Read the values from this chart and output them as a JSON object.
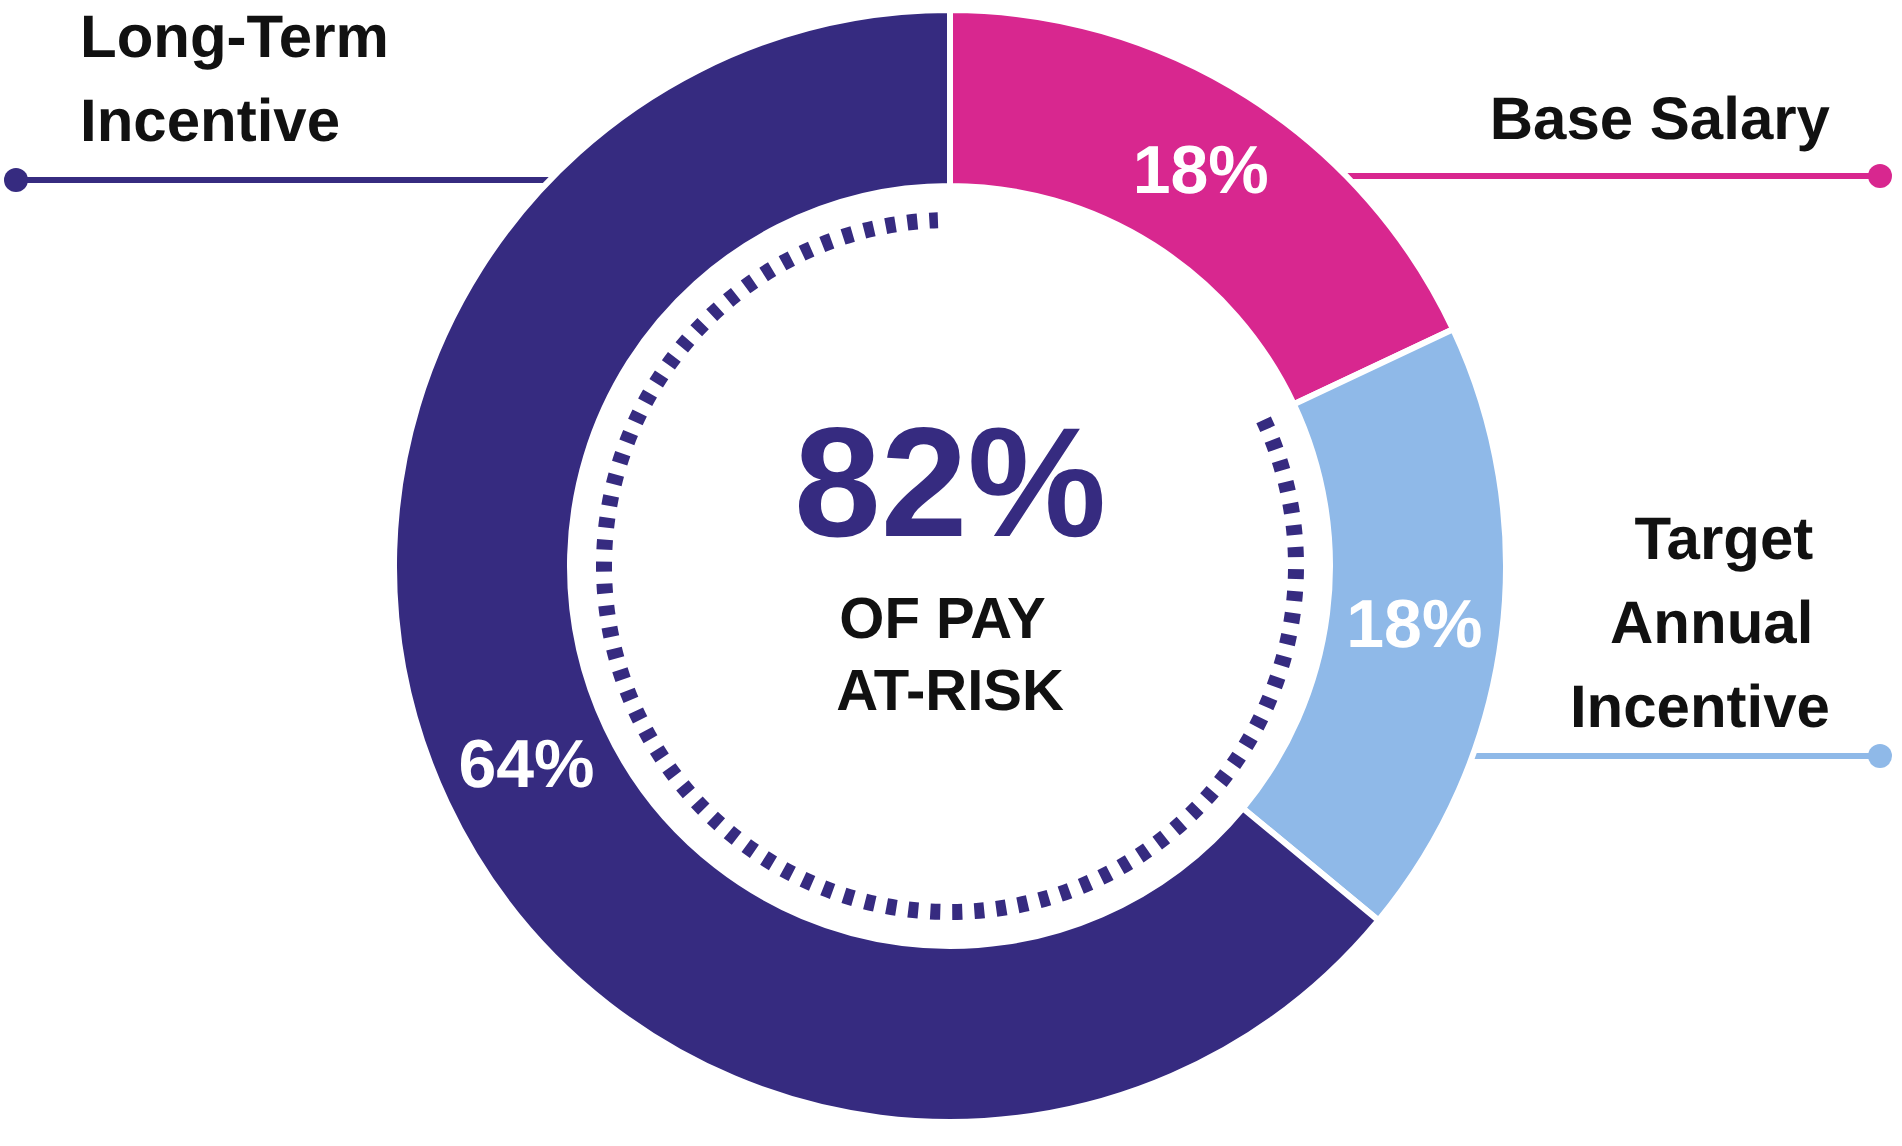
{
  "chart_data": {
    "type": "donut",
    "categories": [
      "Base Salary",
      "Target Annual Incentive",
      "Long-Term Incentive"
    ],
    "values": [
      18,
      18,
      64
    ],
    "colors": [
      "#d8278f",
      "#8fb9e8",
      "#362b80"
    ],
    "value_labels": [
      "18%",
      "18%",
      "64%"
    ],
    "legend": false,
    "annotations": [
      "82%",
      "OF PAY AT-RISK"
    ]
  }
}
